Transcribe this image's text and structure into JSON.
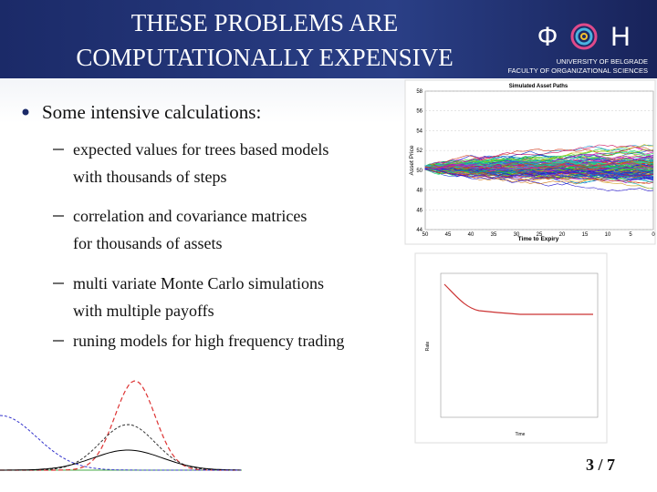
{
  "header": {
    "title_lines": [
      "THESE PROBLEMS ARE",
      "COMPUTATIONALLY EXPENSIVE"
    ]
  },
  "logo": {
    "letters": [
      "Ф",
      "Н"
    ],
    "lines": [
      "UNIVERSITY OF BELGRADE",
      "FACULTY OF ORGANIZATIONAL SCIENCES"
    ]
  },
  "body": {
    "bullet": "Some intensive calculations:",
    "items": [
      [
        "expected values for trees based models",
        "with thousands of steps"
      ],
      [
        "correlation and covariance matrices",
        "for thousands of assets"
      ],
      [
        "multi variate Monte Carlo simulations",
        "with multiple payoffs"
      ],
      [
        "runing models for high frequency trading"
      ]
    ]
  },
  "figure1": {
    "title": "Simulated Asset Paths",
    "ylabel": "Asset Price",
    "xlabel": "Time to Expiry",
    "yticks": [
      58,
      56,
      54,
      52,
      50,
      48,
      46,
      44
    ],
    "xticks": [
      50,
      45,
      40,
      35,
      30,
      25,
      20,
      15,
      10,
      5,
      0
    ]
  },
  "figure2": {
    "ylabel": "Rate",
    "xlabel": "Time"
  },
  "footer": {
    "page": "3 / 7"
  }
}
